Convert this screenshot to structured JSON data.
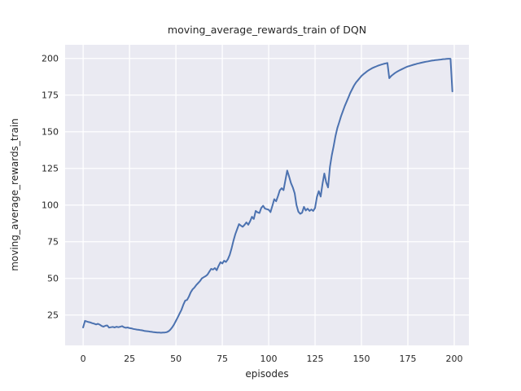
{
  "chart_data": {
    "type": "line",
    "title": "moving_average_rewards_train of DQN",
    "xlabel": "episodes",
    "ylabel": "moving_average_rewards_train",
    "xlim": [
      -9.7,
      207.9
    ],
    "ylim": [
      4.3,
      209.3
    ],
    "xticks": [
      0,
      25,
      50,
      75,
      100,
      125,
      150,
      175,
      200
    ],
    "yticks": [
      25,
      50,
      75,
      100,
      125,
      150,
      175,
      200
    ],
    "grid": true,
    "legend_position": "none",
    "style": {
      "axes_background": "#eaeaf2",
      "grid_color": "#ffffff",
      "line_color": "#4c72b0",
      "text_color": "#262626",
      "line_width": 2
    },
    "series": [
      {
        "name": "moving_average_rewards_train",
        "points": [
          [
            0,
            16.5
          ],
          [
            1,
            21.0
          ],
          [
            2,
            20.6
          ],
          [
            3,
            20.2
          ],
          [
            4,
            19.9
          ],
          [
            5,
            19.4
          ],
          [
            6,
            19.1
          ],
          [
            7,
            18.6
          ],
          [
            8,
            19.0
          ],
          [
            9,
            18.4
          ],
          [
            10,
            17.5
          ],
          [
            11,
            17.1
          ],
          [
            12,
            17.7
          ],
          [
            13,
            17.9
          ],
          [
            14,
            16.4
          ],
          [
            15,
            16.7
          ],
          [
            16,
            16.9
          ],
          [
            17,
            16.5
          ],
          [
            18,
            17.0
          ],
          [
            19,
            16.7
          ],
          [
            20,
            17.0
          ],
          [
            21,
            17.4
          ],
          [
            22,
            16.7
          ],
          [
            23,
            16.3
          ],
          [
            24,
            16.5
          ],
          [
            25,
            16.1
          ],
          [
            26,
            15.9
          ],
          [
            27,
            15.5
          ],
          [
            28,
            15.3
          ],
          [
            29,
            15.1
          ],
          [
            30,
            14.9
          ],
          [
            31,
            14.7
          ],
          [
            32,
            14.5
          ],
          [
            33,
            14.2
          ],
          [
            34,
            14.0
          ],
          [
            35,
            13.9
          ],
          [
            36,
            13.7
          ],
          [
            37,
            13.5
          ],
          [
            38,
            13.3
          ],
          [
            39,
            13.2
          ],
          [
            40,
            13.1
          ],
          [
            41,
            13.0
          ],
          [
            42,
            12.9
          ],
          [
            43,
            13.0
          ],
          [
            44,
            13.1
          ],
          [
            45,
            13.3
          ],
          [
            46,
            13.9
          ],
          [
            47,
            15.0
          ],
          [
            48,
            16.6
          ],
          [
            49,
            18.6
          ],
          [
            50,
            21.0
          ],
          [
            51,
            23.5
          ],
          [
            52,
            26.0
          ],
          [
            53,
            28.5
          ],
          [
            54,
            32.0
          ],
          [
            55,
            34.8
          ],
          [
            56,
            35.3
          ],
          [
            57,
            37.5
          ],
          [
            58,
            40.5
          ],
          [
            59,
            42.5
          ],
          [
            60,
            43.8
          ],
          [
            61,
            45.5
          ],
          [
            62,
            46.8
          ],
          [
            63,
            48.2
          ],
          [
            64,
            50.0
          ],
          [
            65,
            50.8
          ],
          [
            66,
            51.5
          ],
          [
            67,
            52.5
          ],
          [
            68,
            54.5
          ],
          [
            69,
            56.5
          ],
          [
            70,
            56.0
          ],
          [
            71,
            57.0
          ],
          [
            72,
            55.6
          ],
          [
            73,
            58.5
          ],
          [
            74,
            61.0
          ],
          [
            75,
            60.2
          ],
          [
            76,
            62.0
          ],
          [
            77,
            61.2
          ],
          [
            78,
            63.0
          ],
          [
            79,
            66.0
          ],
          [
            80,
            70.5
          ],
          [
            81,
            75.5
          ],
          [
            82,
            80.0
          ],
          [
            83,
            83.5
          ],
          [
            84,
            87.0
          ],
          [
            85,
            86.0
          ],
          [
            86,
            85.2
          ],
          [
            87,
            86.5
          ],
          [
            88,
            88.2
          ],
          [
            89,
            86.6
          ],
          [
            90,
            89.0
          ],
          [
            91,
            92.0
          ],
          [
            92,
            90.5
          ],
          [
            93,
            96.0
          ],
          [
            94,
            95.0
          ],
          [
            95,
            94.6
          ],
          [
            96,
            98.0
          ],
          [
            97,
            99.5
          ],
          [
            98,
            97.6
          ],
          [
            99,
            97.2
          ],
          [
            100,
            96.8
          ],
          [
            101,
            95.2
          ],
          [
            102,
            99.5
          ],
          [
            103,
            104.0
          ],
          [
            104,
            102.6
          ],
          [
            105,
            106.0
          ],
          [
            106,
            110.0
          ],
          [
            107,
            111.5
          ],
          [
            108,
            110.2
          ],
          [
            109,
            117.0
          ],
          [
            110,
            123.5
          ],
          [
            111,
            119.5
          ],
          [
            112,
            115.0
          ],
          [
            113,
            112.0
          ],
          [
            114,
            108.0
          ],
          [
            115,
            100.0
          ],
          [
            116,
            95.5
          ],
          [
            117,
            94.0
          ],
          [
            118,
            94.8
          ],
          [
            119,
            98.8
          ],
          [
            120,
            96.3
          ],
          [
            121,
            97.5
          ],
          [
            122,
            96.0
          ],
          [
            123,
            97.0
          ],
          [
            124,
            96.0
          ],
          [
            125,
            98.0
          ],
          [
            126,
            105.5
          ],
          [
            127,
            109.5
          ],
          [
            128,
            105.8
          ],
          [
            129,
            114.5
          ],
          [
            130,
            121.5
          ],
          [
            131,
            115.5
          ],
          [
            132,
            112.0
          ],
          [
            133,
            126.0
          ],
          [
            134,
            134.0
          ],
          [
            135,
            140.0
          ],
          [
            136,
            147.0
          ],
          [
            137,
            152.5
          ],
          [
            138,
            156.5
          ],
          [
            139,
            160.5
          ],
          [
            140,
            164.0
          ],
          [
            141,
            167.5
          ],
          [
            142,
            170.5
          ],
          [
            143,
            173.5
          ],
          [
            144,
            176.5
          ],
          [
            145,
            179.0
          ],
          [
            146,
            181.5
          ],
          [
            147,
            183.5
          ],
          [
            148,
            185.0
          ],
          [
            149,
            186.5
          ],
          [
            150,
            188.0
          ],
          [
            151,
            189.2
          ],
          [
            152,
            190.2
          ],
          [
            153,
            191.2
          ],
          [
            154,
            192.0
          ],
          [
            155,
            192.8
          ],
          [
            156,
            193.5
          ],
          [
            157,
            194.1
          ],
          [
            158,
            194.6
          ],
          [
            159,
            195.1
          ],
          [
            160,
            195.5
          ],
          [
            161,
            195.9
          ],
          [
            162,
            196.3
          ],
          [
            163,
            196.6
          ],
          [
            164,
            196.9
          ],
          [
            165,
            186.5
          ],
          [
            166,
            188.0
          ],
          [
            167,
            189.0
          ],
          [
            168,
            190.0
          ],
          [
            169,
            190.8
          ],
          [
            170,
            191.5
          ],
          [
            171,
            192.2
          ],
          [
            172,
            192.8
          ],
          [
            173,
            193.4
          ],
          [
            174,
            194.0
          ],
          [
            175,
            194.5
          ],
          [
            176,
            194.9
          ],
          [
            177,
            195.3
          ],
          [
            178,
            195.7
          ],
          [
            179,
            196.0
          ],
          [
            180,
            196.4
          ],
          [
            181,
            196.7
          ],
          [
            182,
            197.0
          ],
          [
            183,
            197.3
          ],
          [
            184,
            197.6
          ],
          [
            185,
            197.8
          ],
          [
            186,
            198.0
          ],
          [
            187,
            198.3
          ],
          [
            188,
            198.5
          ],
          [
            189,
            198.7
          ],
          [
            190,
            198.9
          ],
          [
            191,
            199.0
          ],
          [
            192,
            199.2
          ],
          [
            193,
            199.3
          ],
          [
            194,
            199.5
          ],
          [
            195,
            199.6
          ],
          [
            196,
            199.7
          ],
          [
            197,
            199.8
          ],
          [
            198,
            199.8
          ],
          [
            199,
            177.5
          ]
        ]
      }
    ]
  }
}
